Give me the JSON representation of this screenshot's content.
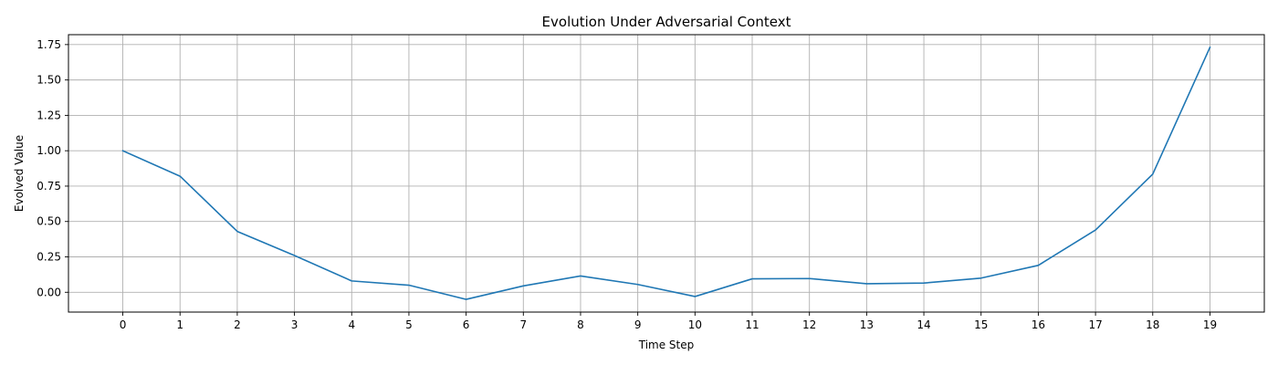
{
  "chart_data": {
    "type": "line",
    "title": "Evolution Under Adversarial Context",
    "xlabel": "Time Step",
    "ylabel": "Evolved Value",
    "x": [
      0,
      1,
      2,
      3,
      4,
      5,
      6,
      7,
      8,
      9,
      10,
      11,
      12,
      13,
      14,
      15,
      16,
      17,
      18,
      19
    ],
    "series": [
      {
        "values": [
          1.0,
          0.82,
          0.43,
          0.26,
          0.08,
          0.05,
          -0.05,
          0.045,
          0.115,
          0.055,
          -0.03,
          0.095,
          0.097,
          0.06,
          0.065,
          0.1,
          0.19,
          0.44,
          0.835,
          1.73
        ],
        "color": "#1f77b4"
      }
    ],
    "xticks": [
      0,
      1,
      2,
      3,
      4,
      5,
      6,
      7,
      8,
      9,
      10,
      11,
      12,
      13,
      14,
      15,
      16,
      17,
      18,
      19
    ],
    "yticks": [
      0.0,
      0.25,
      0.5,
      0.75,
      1.0,
      1.25,
      1.5,
      1.75
    ],
    "ytick_labels": [
      "0.00",
      "0.25",
      "0.50",
      "0.75",
      "1.00",
      "1.25",
      "1.50",
      "1.75"
    ],
    "xlim": [
      -0.95,
      19.95
    ],
    "ylim": [
      -0.14,
      1.82
    ],
    "grid": true,
    "grid_color": "#b0b0b0",
    "axis_color": "#000000"
  }
}
